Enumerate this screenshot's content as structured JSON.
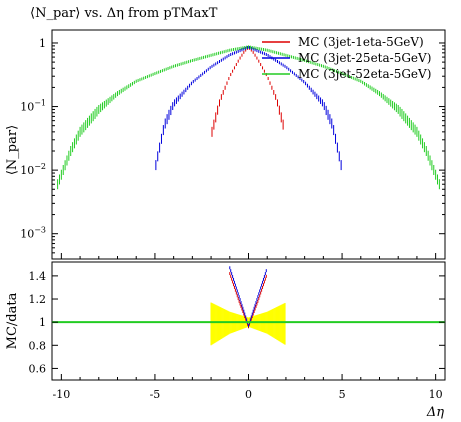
{
  "chart_data": {
    "type": "scatter",
    "title": "⟨N_par⟩ vs. Δη from pTMaxT",
    "xlabel": "Δη",
    "xlim": [
      -10.5,
      10.5
    ],
    "x_ticks": [
      -10,
      -5,
      0,
      5,
      10
    ],
    "x_tick_labels": [
      "-10",
      "-5",
      "0",
      "5",
      "10"
    ],
    "top_panel": {
      "ylabel": "⟨N_par⟩",
      "yscale": "log",
      "ylim": [
        0.0004,
        1.6
      ],
      "y_ticks": [
        1,
        0.1,
        0.01,
        0.001
      ],
      "y_tick_labels": [
        "1",
        "10^-1",
        "10^-2",
        "10^-3"
      ],
      "legend_position": "top-right"
    },
    "bottom_panel": {
      "ylabel": "MC/data",
      "ylim": [
        0.5,
        1.52
      ],
      "y_ticks": [
        0.6,
        0.8,
        1.0,
        1.2,
        1.4
      ],
      "y_tick_labels": [
        "0.6",
        "0.8",
        "1",
        "1.2",
        "1.4"
      ],
      "reference_line": 1.0,
      "band_color": "#ffff00"
    },
    "series": [
      {
        "name": "MC (3jet-1eta-5GeV)",
        "color": "#dd0000",
        "x": [
          -1.95,
          -1.5,
          -1.0,
          -0.5,
          -0.2,
          0,
          0.2,
          0.5,
          1.0,
          1.5,
          1.95
        ],
        "y": [
          0.04,
          0.13,
          0.3,
          0.55,
          0.75,
          0.85,
          0.75,
          0.55,
          0.3,
          0.13,
          0.04
        ],
        "ratio_x": [
          -1.0,
          -0.5,
          0,
          0.5,
          1.0
        ],
        "ratio_y": [
          1.42,
          1.18,
          0.96,
          1.18,
          1.42
        ]
      },
      {
        "name": "MC (3jet-25eta-5GeV)",
        "color": "#0000dd",
        "x": [
          -4.95,
          -4.5,
          -4.0,
          -3.0,
          -2.0,
          -1.0,
          0,
          1.0,
          2.0,
          3.0,
          4.0,
          4.5,
          4.95
        ],
        "y": [
          0.012,
          0.05,
          0.11,
          0.24,
          0.42,
          0.65,
          0.86,
          0.65,
          0.42,
          0.24,
          0.11,
          0.05,
          0.012
        ],
        "ratio_x": [
          -1.0,
          -0.5,
          0,
          0.5,
          1.0
        ],
        "ratio_y": [
          1.47,
          1.22,
          0.97,
          1.22,
          1.47
        ]
      },
      {
        "name": "MC (3jet-52eta-5GeV)",
        "color": "#22cc22",
        "x": [
          -10.2,
          -9.5,
          -9.0,
          -8.0,
          -7.0,
          -6.0,
          -5.0,
          -4.0,
          -3.0,
          -2.0,
          -1.0,
          0,
          1.0,
          2.0,
          3.0,
          4.0,
          5.0,
          6.0,
          7.0,
          8.0,
          9.0,
          9.5,
          10.2
        ],
        "y": [
          0.006,
          0.02,
          0.04,
          0.09,
          0.16,
          0.25,
          0.33,
          0.43,
          0.53,
          0.64,
          0.77,
          0.87,
          0.77,
          0.64,
          0.53,
          0.43,
          0.33,
          0.25,
          0.16,
          0.09,
          0.04,
          0.02,
          0.006
        ],
        "ratio_x": [
          -10.5,
          10.5
        ],
        "ratio_y": [
          1.0,
          1.0
        ]
      }
    ],
    "uncertainty_band": {
      "x": [
        -2,
        -1,
        0,
        1,
        2
      ],
      "low": [
        0.8,
        0.9,
        0.96,
        0.9,
        0.8
      ],
      "high": [
        1.17,
        1.09,
        1.04,
        1.09,
        1.17
      ]
    }
  }
}
